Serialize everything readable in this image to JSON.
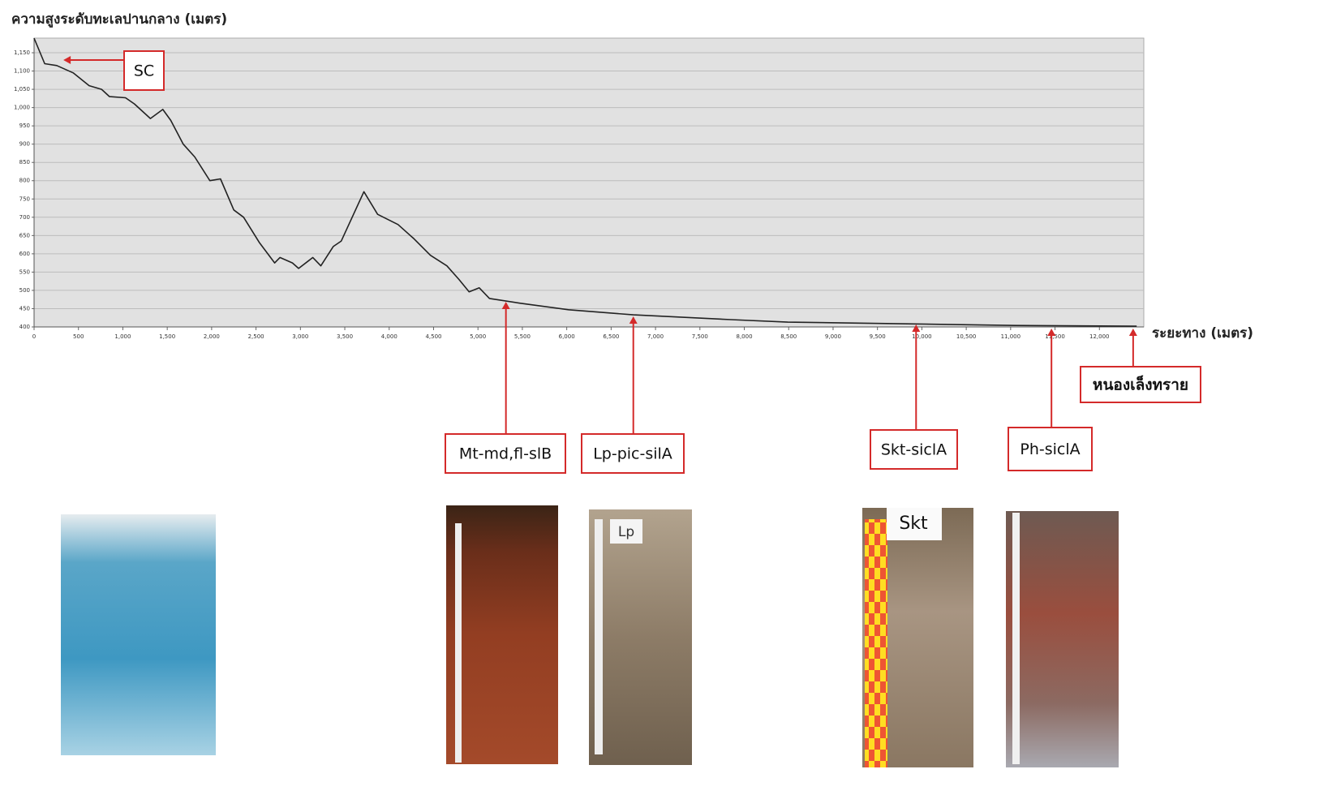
{
  "chart_data": {
    "type": "line",
    "ylabel": "ความสูงระดับทะเลปานกลาง (เมตร)",
    "xlabel": "ระยะทาง (เมตร)",
    "x": [
      0,
      120,
      256,
      440,
      620,
      760,
      850,
      1030,
      1130,
      1310,
      1450,
      1540,
      1680,
      1810,
      1980,
      2100,
      2250,
      2360,
      2540,
      2710,
      2770,
      2910,
      2980,
      3140,
      3230,
      3370,
      3460,
      3715,
      3870,
      4100,
      4280,
      4465,
      4650,
      4785,
      4900,
      5015,
      5130,
      5470,
      6020,
      6750,
      7850,
      8490,
      9680,
      11050,
      12420
    ],
    "values": [
      1190,
      1120,
      1115,
      1095,
      1060,
      1050,
      1030,
      1027,
      1010,
      970,
      995,
      965,
      900,
      865,
      800,
      805,
      720,
      700,
      630,
      575,
      590,
      575,
      560,
      590,
      567,
      620,
      635,
      770,
      708,
      680,
      641,
      596,
      567,
      530,
      496,
      507,
      478,
      465,
      447,
      433,
      420,
      413,
      409,
      404,
      402
    ],
    "color": "#222222",
    "xlim": [
      0,
      12500
    ],
    "ylim": [
      400,
      1190
    ],
    "xticks": [
      0,
      500,
      {
        "value": 1000,
        "label": "1,000"
      },
      {
        "value": 1500,
        "label": "1,500"
      },
      {
        "value": 2000,
        "label": "2,000"
      },
      {
        "value": 2500,
        "label": "2,500"
      },
      {
        "value": 3000,
        "label": "3,000"
      },
      {
        "value": 3500,
        "label": "3,500"
      },
      {
        "value": 4000,
        "label": "4,000"
      },
      {
        "value": 4500,
        "label": "4,500"
      },
      {
        "value": 5000,
        "label": "5,000"
      },
      {
        "value": 5500,
        "label": "5,500"
      },
      {
        "value": 6000,
        "label": "6,000"
      },
      {
        "value": 6500,
        "label": "6,500"
      },
      {
        "value": 7000,
        "label": "7,000"
      },
      {
        "value": 7500,
        "label": "7,500"
      },
      {
        "value": 8000,
        "label": "8,000"
      },
      {
        "value": 8500,
        "label": "8,500"
      },
      {
        "value": 9000,
        "label": "9,000"
      },
      {
        "value": 9500,
        "label": "9,500"
      },
      {
        "value": 10000,
        "label": "10,000"
      },
      {
        "value": 10500,
        "label": "10,500"
      },
      {
        "value": 11000,
        "label": "11,000"
      },
      {
        "value": 11500,
        "label": "11,500"
      },
      {
        "value": 12000,
        "label": "12,000"
      }
    ],
    "yticks": [
      400,
      450,
      500,
      550,
      600,
      650,
      700,
      750,
      800,
      850,
      900,
      950,
      {
        "value": 1000,
        "label": "1,000"
      },
      {
        "value": 1050,
        "label": "1,050"
      },
      {
        "value": 1100,
        "label": "1,100"
      },
      {
        "value": 1150,
        "label": "1,150"
      }
    ],
    "grid": true,
    "annotations": [
      {
        "text": "SC",
        "x": 330,
        "y": 1130
      },
      {
        "text": "Mt-md,fl-slB",
        "x": 5315
      },
      {
        "text": "Lp-pic-silA",
        "x": 6750
      },
      {
        "text": "Skt-siclA",
        "x": 9935
      },
      {
        "text": "Ph-siclA",
        "x": 11460
      },
      {
        "text": "หนองเล็งทราย",
        "x": 12380
      }
    ]
  },
  "photo_labels": [
    "Lp",
    "Skt"
  ]
}
